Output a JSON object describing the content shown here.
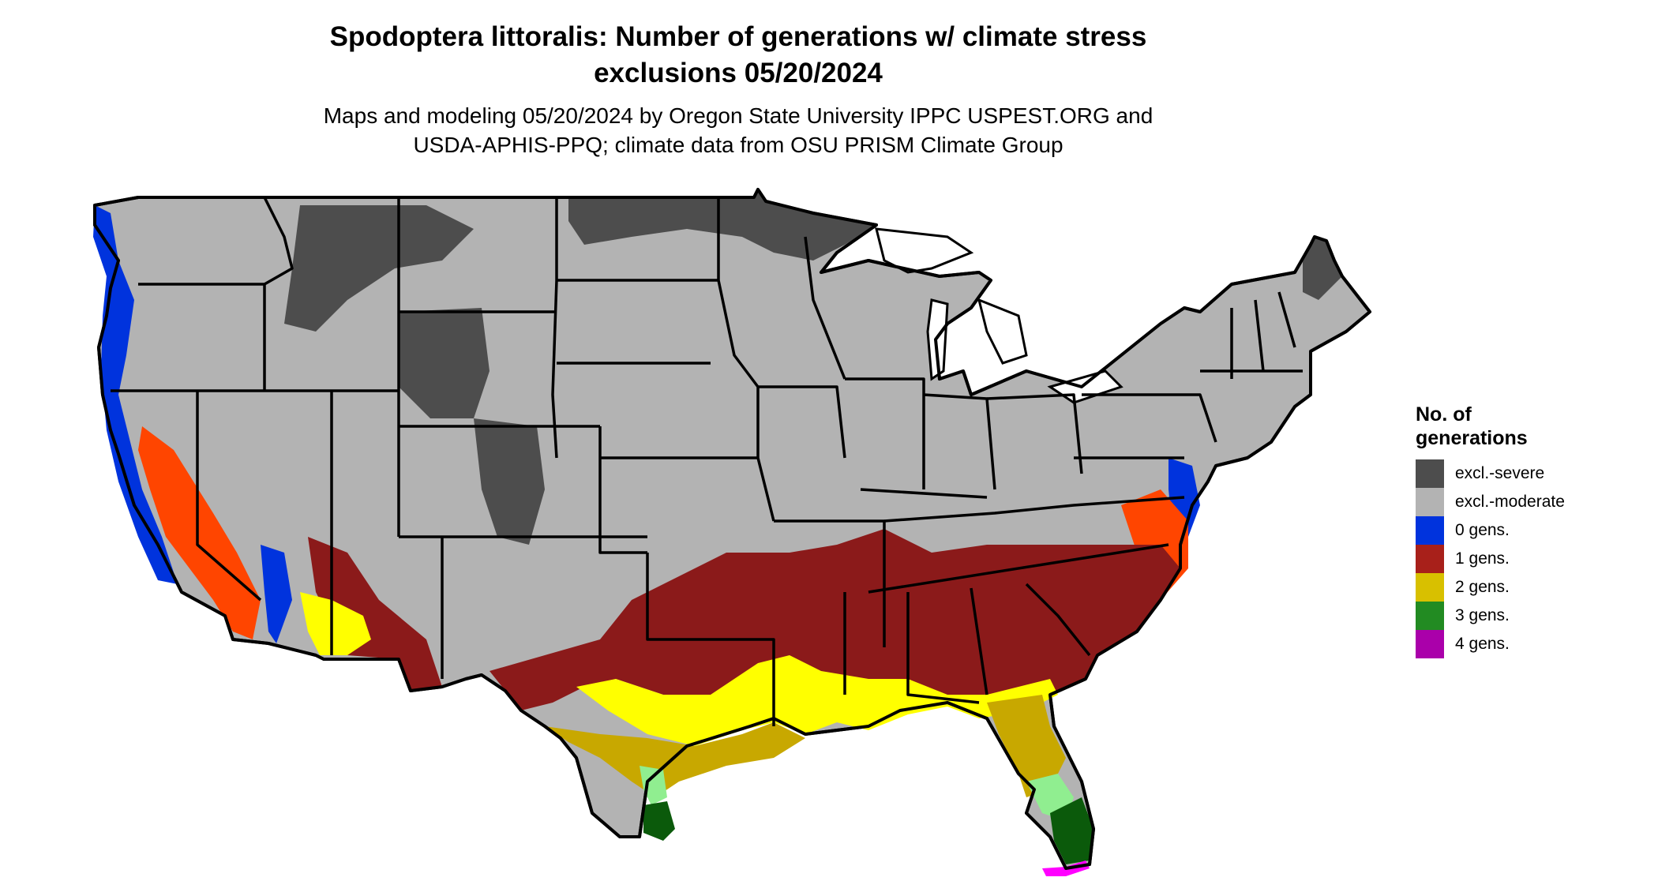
{
  "title_line1": "Spodoptera littoralis: Number of generations w/ climate stress",
  "title_line2": "exclusions 05/20/2024",
  "subtitle_line1": "Maps and modeling 05/20/2024 by Oregon State University IPPC USPEST.ORG and",
  "subtitle_line2": "USDA-APHIS-PPQ; climate data from OSU PRISM Climate Group",
  "legend": {
    "title_line1": "No. of",
    "title_line2": "generations",
    "items": [
      {
        "label": "excl.-severe",
        "color": "#4d4d4d"
      },
      {
        "label": "excl.-moderate",
        "color": "#b3b3b3"
      },
      {
        "label": "0 gens.",
        "color": "#0033dd"
      },
      {
        "label": "1 gens.",
        "color": "#a8201a"
      },
      {
        "label": "2 gens.",
        "color": "#d8c000"
      },
      {
        "label": "3 gens.",
        "color": "#228b22"
      },
      {
        "label": "4 gens.",
        "color": "#aa00aa"
      }
    ]
  },
  "colors": {
    "severe": "#4d4d4d",
    "moderate": "#b3b3b3",
    "zero": "#0033dd",
    "one": "#8b1a1a",
    "one_light": "#ff4500",
    "two": "#c8a800",
    "two_light": "#ffff00",
    "three": "#0b5a0b",
    "three_light": "#90ee90",
    "four": "#ff00ff"
  }
}
